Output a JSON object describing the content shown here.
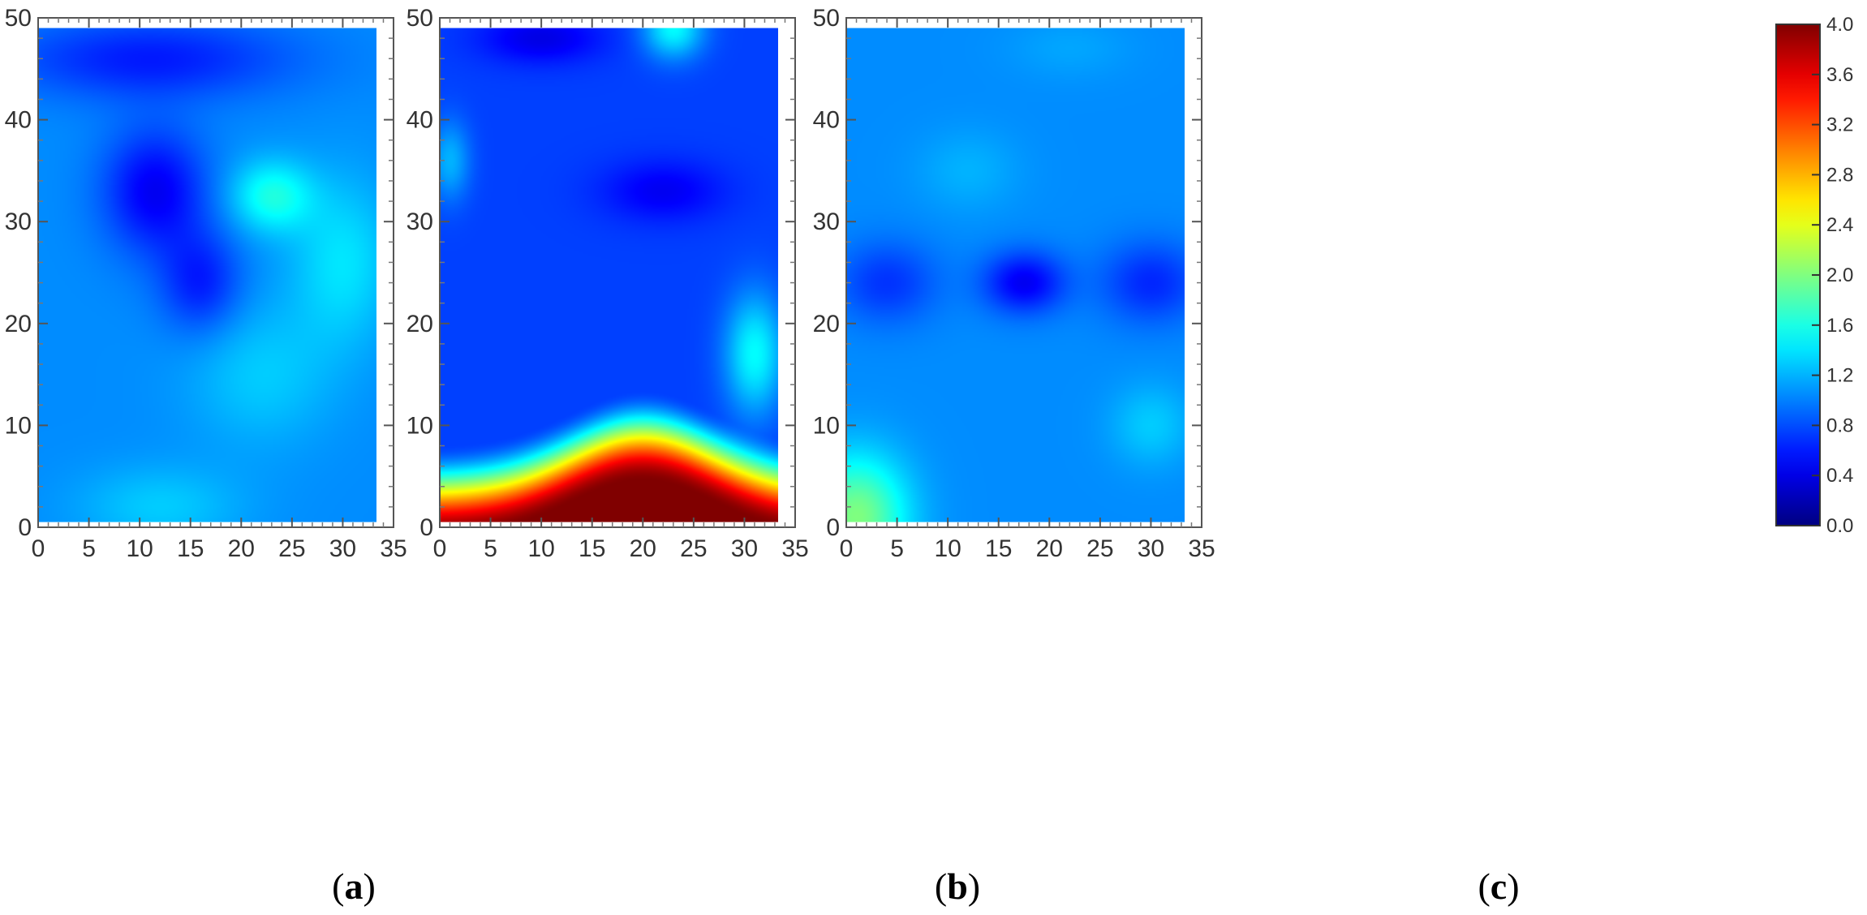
{
  "chart_data": [
    {
      "type": "heatmap",
      "panel_label": "a",
      "x_ticks": [
        0,
        5,
        10,
        15,
        20,
        25,
        30,
        35
      ],
      "y_ticks": [
        0,
        10,
        20,
        30,
        40,
        50
      ],
      "xlim": [
        0,
        35
      ],
      "ylim": [
        0,
        50
      ],
      "data_extent": {
        "x": [
          0,
          33.3
        ],
        "y": [
          0.5,
          49
        ]
      },
      "base_value": 1.05,
      "features": [
        {
          "x": 11.5,
          "y": 33,
          "value": 0.45,
          "spread_x": 5,
          "spread_y": 6
        },
        {
          "x": 16,
          "y": 24,
          "value": 0.6,
          "spread_x": 4,
          "spread_y": 5
        },
        {
          "x": 11,
          "y": 46,
          "value": 0.6,
          "spread_x": 14,
          "spread_y": 4
        },
        {
          "x": 23,
          "y": 32.5,
          "value": 1.6,
          "spread_x": 4,
          "spread_y": 3.5
        },
        {
          "x": 30,
          "y": 26,
          "value": 1.4,
          "spread_x": 5,
          "spread_y": 8
        },
        {
          "x": 22,
          "y": 15,
          "value": 1.3,
          "spread_x": 7,
          "spread_y": 7
        },
        {
          "x": 12,
          "y": 2,
          "value": 1.3,
          "spread_x": 8,
          "spread_y": 4
        }
      ]
    },
    {
      "type": "heatmap",
      "panel_label": "b",
      "x_ticks": [
        0,
        5,
        10,
        15,
        20,
        25,
        30,
        35
      ],
      "y_ticks": [
        0,
        10,
        20,
        30,
        40,
        50
      ],
      "xlim": [
        0,
        35
      ],
      "ylim": [
        0,
        50
      ],
      "data_extent": {
        "x": [
          0,
          33.3
        ],
        "y": [
          0.5,
          49
        ]
      },
      "base_value": 0.75,
      "band": {
        "center_x": 20,
        "peak_y": 13.5,
        "edge_y": 8,
        "width": 10,
        "top_value": 4.0,
        "gradient_height": 9
      },
      "features": [
        {
          "x": 23,
          "y": 49,
          "value": 1.5,
          "spread_x": 3,
          "spread_y": 3
        },
        {
          "x": 10,
          "y": 48,
          "value": 0.4,
          "spread_x": 6,
          "spread_y": 2.5
        },
        {
          "x": 1,
          "y": 36,
          "value": 1.2,
          "spread_x": 2,
          "spread_y": 4
        },
        {
          "x": 22,
          "y": 33,
          "value": 0.45,
          "spread_x": 6,
          "spread_y": 3
        },
        {
          "x": 31,
          "y": 17,
          "value": 1.5,
          "spread_x": 3,
          "spread_y": 6
        }
      ]
    },
    {
      "type": "heatmap",
      "panel_label": "c",
      "x_ticks": [
        0,
        5,
        10,
        15,
        20,
        25,
        30,
        35
      ],
      "y_ticks": [
        0,
        10,
        20,
        30,
        40,
        50
      ],
      "xlim": [
        0,
        35
      ],
      "ylim": [
        0,
        50
      ],
      "data_extent": {
        "x": [
          0,
          33.3
        ],
        "y": [
          0.5,
          49
        ]
      },
      "base_value": 1.05,
      "features": [
        {
          "x": 17.5,
          "y": 24,
          "value": 0.45,
          "spread_x": 4,
          "spread_y": 3
        },
        {
          "x": 4,
          "y": 24,
          "value": 0.7,
          "spread_x": 5,
          "spread_y": 4
        },
        {
          "x": 30,
          "y": 24,
          "value": 0.65,
          "spread_x": 5,
          "spread_y": 4
        },
        {
          "x": 1,
          "y": 1,
          "value": 2.0,
          "spread_x": 5,
          "spread_y": 6
        },
        {
          "x": 12,
          "y": 35,
          "value": 1.2,
          "spread_x": 5,
          "spread_y": 4
        },
        {
          "x": 30,
          "y": 10,
          "value": 1.3,
          "spread_x": 4,
          "spread_y": 4
        },
        {
          "x": 22,
          "y": 47,
          "value": 1.15,
          "spread_x": 6,
          "spread_y": 3
        }
      ]
    }
  ],
  "colorbar": {
    "ticks": [
      "4.0",
      "3.6",
      "3.2",
      "2.8",
      "2.4",
      "2.0",
      "1.6",
      "1.2",
      "0.8",
      "0.4",
      "0.0"
    ],
    "vmin": 0,
    "vmax": 4,
    "colormap": "jet"
  },
  "captions": [
    {
      "open": "(",
      "letter": "a",
      "close": ")"
    },
    {
      "open": "(",
      "letter": "b",
      "close": ")"
    },
    {
      "open": "(",
      "letter": "c",
      "close": ")"
    }
  ]
}
